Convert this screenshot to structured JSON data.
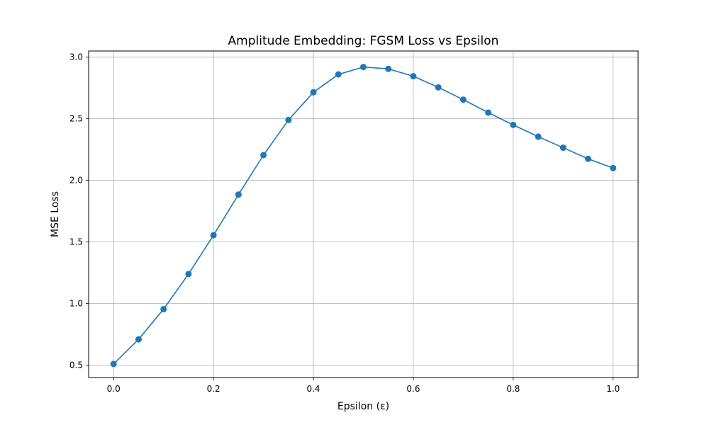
{
  "chart_data": {
    "type": "line",
    "title": "Amplitude Embedding: FGSM Loss vs Epsilon",
    "xlabel": "Epsilon (ε)",
    "ylabel": "MSE Loss",
    "xlim": [
      -0.05,
      1.05
    ],
    "ylim": [
      0.4,
      3.05
    ],
    "xticks": [
      0.0,
      0.2,
      0.4,
      0.6,
      0.8,
      1.0
    ],
    "xtick_labels": [
      "0.0",
      "0.2",
      "0.4",
      "0.6",
      "0.8",
      "1.0"
    ],
    "yticks": [
      0.5,
      1.0,
      1.5,
      2.0,
      2.5,
      3.0
    ],
    "ytick_labels": [
      "0.5",
      "1.0",
      "1.5",
      "2.0",
      "2.5",
      "3.0"
    ],
    "grid": true,
    "series": [
      {
        "color": "#1f77b4",
        "marker": "circle",
        "x": [
          0.0,
          0.05,
          0.1,
          0.15,
          0.2,
          0.25,
          0.3,
          0.35,
          0.4,
          0.45,
          0.5,
          0.55,
          0.6,
          0.65,
          0.7,
          0.75,
          0.8,
          0.85,
          0.9,
          0.95,
          1.0
        ],
        "y": [
          0.51,
          0.71,
          0.955,
          1.24,
          1.555,
          1.885,
          2.205,
          2.49,
          2.715,
          2.86,
          2.92,
          2.905,
          2.845,
          2.755,
          2.655,
          2.55,
          2.45,
          2.355,
          2.265,
          2.175,
          2.1
        ]
      }
    ]
  }
}
